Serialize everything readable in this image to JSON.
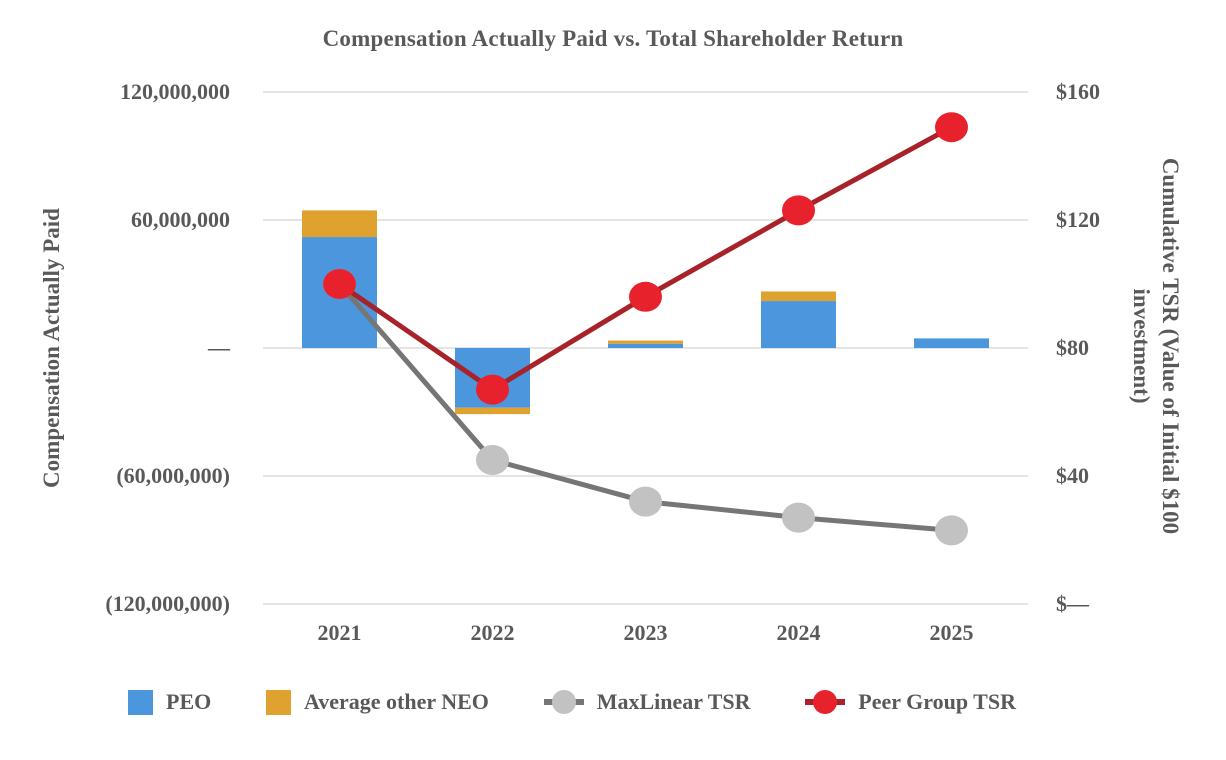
{
  "colors": {
    "peo_blue": "#4B96DC",
    "neo_orange": "#DFA22F",
    "maxlinear_line": "#767676",
    "maxlinear_marker": "#C2C2C2",
    "peer_line": "#A8222A",
    "peer_marker": "#E8222C",
    "text": "#595959",
    "gridline": "#E4E4E4"
  },
  "left_axis": {
    "title": "Compensation Actually Paid",
    "ticks": [
      {
        "label": "120,000,000",
        "value": 120000000
      },
      {
        "label": "60,000,000",
        "value": 60000000
      },
      {
        "label": "—",
        "value": 0
      },
      {
        "label": "(60,000,000)",
        "value": -60000000
      },
      {
        "label": "(120,000,000)",
        "value": -120000000
      }
    ]
  },
  "right_axis": {
    "title_line1": "Cumulative TSR (Value of Initial $100",
    "title_line2": "investment)",
    "ticks": [
      {
        "label": "$160",
        "value": 160
      },
      {
        "label": "$120",
        "value": 120
      },
      {
        "label": "$80",
        "value": 80
      },
      {
        "label": "$40",
        "value": 40
      },
      {
        "label": "$—",
        "value": 0
      }
    ]
  },
  "legend": [
    {
      "label": "PEO",
      "type": "bar",
      "color": "#4B96DC"
    },
    {
      "label": "Average other NEO",
      "type": "bar",
      "color": "#DFA22F"
    },
    {
      "label": "MaxLinear TSR",
      "type": "line",
      "line_color": "#767676",
      "marker_color": "#C2C2C2"
    },
    {
      "label": "Peer Group TSR",
      "type": "line",
      "line_color": "#A8222A",
      "marker_color": "#E8222C"
    }
  ],
  "chart_data": {
    "type": "combo (stacked bar + line, dual axis)",
    "title": "Compensation Actually Paid vs. Total Shareholder Return",
    "categories": [
      "2021",
      "2022",
      "2023",
      "2024",
      "2025"
    ],
    "bar_series": [
      {
        "name": "PEO",
        "axis": "left",
        "color": "#4B96DC",
        "values": [
          52000000,
          -28000000,
          2000000,
          22000000,
          4500000
        ]
      },
      {
        "name": "Average other NEO",
        "axis": "left",
        "color": "#DFA22F",
        "values": [
          12500000,
          -3000000,
          1500000,
          4500000,
          0
        ]
      }
    ],
    "line_series": [
      {
        "name": "MaxLinear TSR",
        "axis": "right",
        "line_color": "#767676",
        "marker_color": "#C2C2C2",
        "values": [
          100,
          45,
          32,
          27,
          23
        ]
      },
      {
        "name": "Peer Group TSR",
        "axis": "right",
        "line_color": "#A8222A",
        "marker_color": "#E8222C",
        "values": [
          100,
          67,
          96,
          123,
          149
        ]
      }
    ],
    "left_ylabel": "Compensation Actually Paid",
    "right_ylabel": "Cumulative TSR (Value of Initial $100 investment)",
    "left_ylim": [
      -120000000,
      120000000
    ],
    "right_ylim": [
      0,
      160
    ],
    "grid": true,
    "legend_position": "bottom",
    "stacked_bars": true
  }
}
